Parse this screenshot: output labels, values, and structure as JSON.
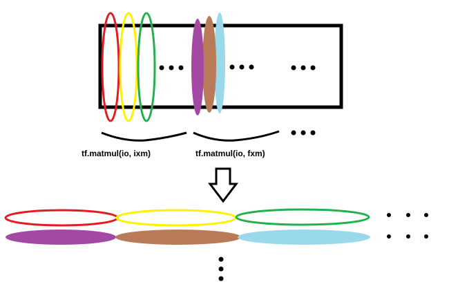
{
  "labels": {
    "left_op": "tf.matmul(io, ixm)",
    "right_op": "tf.matmul(io, fxm)"
  },
  "colors": {
    "red": "#e31c23",
    "yellow": "#fff200",
    "green": "#22b14c",
    "purple": "#a349a4",
    "brown": "#b97a57",
    "lightblue": "#99d9ea",
    "black": "#000000"
  },
  "icons": [
    "down-arrow-icon",
    "ellipsis"
  ]
}
